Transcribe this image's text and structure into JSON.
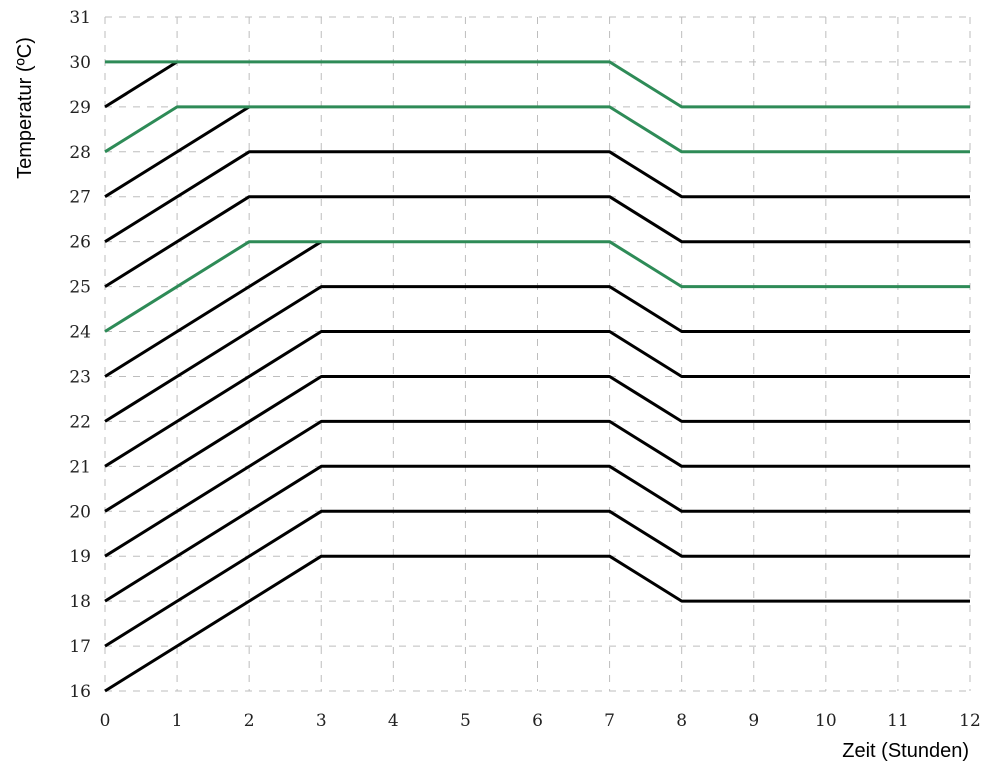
{
  "chart_data": {
    "type": "line",
    "title": "",
    "xlabel": "Zeit (Stunden)",
    "ylabel": "Temperatur (ºC)",
    "xlim": [
      0,
      12
    ],
    "ylim": [
      16,
      31
    ],
    "grid": true,
    "x_ticks": [
      "0",
      "1",
      "2",
      "3",
      "4",
      "5",
      "6",
      "7",
      "8",
      "9",
      "10",
      "11",
      "12"
    ],
    "y_ticks": [
      "16",
      "17",
      "18",
      "19",
      "20",
      "21",
      "22",
      "23",
      "24",
      "25",
      "26",
      "27",
      "28",
      "29",
      "30",
      "31"
    ],
    "colors": {
      "black": "#000000",
      "green": "#2e8b57",
      "grid": "#bdbdbd"
    },
    "series": [
      {
        "color": "black",
        "points": [
          [
            0,
            16
          ],
          [
            3,
            19
          ],
          [
            7,
            19
          ],
          [
            8,
            18
          ],
          [
            12,
            18
          ]
        ]
      },
      {
        "color": "black",
        "points": [
          [
            0,
            17
          ],
          [
            3,
            20
          ],
          [
            7,
            20
          ],
          [
            8,
            19
          ],
          [
            12,
            19
          ]
        ]
      },
      {
        "color": "black",
        "points": [
          [
            0,
            18
          ],
          [
            3,
            21
          ],
          [
            7,
            21
          ],
          [
            8,
            20
          ],
          [
            12,
            20
          ]
        ]
      },
      {
        "color": "black",
        "points": [
          [
            0,
            19
          ],
          [
            3,
            22
          ],
          [
            7,
            22
          ],
          [
            8,
            21
          ],
          [
            12,
            21
          ]
        ]
      },
      {
        "color": "black",
        "points": [
          [
            0,
            20
          ],
          [
            3,
            23
          ],
          [
            7,
            23
          ],
          [
            8,
            22
          ],
          [
            12,
            22
          ]
        ]
      },
      {
        "color": "black",
        "points": [
          [
            0,
            21
          ],
          [
            3,
            24
          ],
          [
            7,
            24
          ],
          [
            8,
            23
          ],
          [
            12,
            23
          ]
        ]
      },
      {
        "color": "black",
        "points": [
          [
            0,
            22
          ],
          [
            3,
            25
          ],
          [
            7,
            25
          ],
          [
            8,
            24
          ],
          [
            12,
            24
          ]
        ]
      },
      {
        "color": "black",
        "points": [
          [
            0,
            23
          ],
          [
            3,
            26
          ]
        ]
      },
      {
        "color": "black",
        "points": [
          [
            0,
            25
          ],
          [
            2,
            27
          ],
          [
            7,
            27
          ],
          [
            8,
            26
          ],
          [
            12,
            26
          ]
        ]
      },
      {
        "color": "black",
        "points": [
          [
            0,
            26
          ],
          [
            2,
            28
          ],
          [
            7,
            28
          ],
          [
            8,
            27
          ],
          [
            12,
            27
          ]
        ]
      },
      {
        "color": "black",
        "points": [
          [
            0,
            27
          ],
          [
            2,
            29
          ]
        ]
      },
      {
        "color": "black",
        "points": [
          [
            0,
            29
          ],
          [
            1,
            30
          ]
        ]
      },
      {
        "color": "green",
        "points": [
          [
            0,
            24
          ],
          [
            2,
            26
          ],
          [
            7,
            26
          ],
          [
            8,
            25
          ],
          [
            12,
            25
          ]
        ]
      },
      {
        "color": "green",
        "points": [
          [
            0,
            28
          ],
          [
            1,
            29
          ],
          [
            7,
            29
          ],
          [
            8,
            28
          ],
          [
            12,
            28
          ]
        ]
      },
      {
        "color": "green",
        "points": [
          [
            0,
            30
          ],
          [
            7,
            30
          ],
          [
            8,
            29
          ],
          [
            12,
            29
          ]
        ]
      }
    ]
  }
}
